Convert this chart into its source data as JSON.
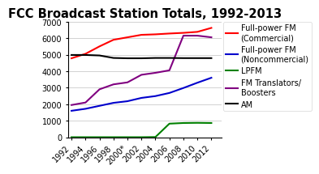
{
  "title": "FCC Broadcast Station Totals, 1992-2013",
  "x_labels": [
    "1992",
    "1994",
    "1996",
    "1998",
    "2000*",
    "2002",
    "2004",
    "2006",
    "2008",
    "2010",
    "2012"
  ],
  "x_values": [
    1992,
    1994,
    1996,
    1998,
    2000,
    2002,
    2004,
    2006,
    2008,
    2010,
    2012
  ],
  "series": [
    {
      "label": "Full-power FM\n(Commercial)",
      "color": "#ff0000",
      "values": [
        4780,
        5050,
        5500,
        5900,
        6050,
        6200,
        6230,
        6280,
        6320,
        6380,
        6620
      ]
    },
    {
      "label": "Full-power FM\n(Noncommercial)",
      "color": "#0000cc",
      "values": [
        1600,
        1720,
        1900,
        2080,
        2180,
        2380,
        2490,
        2680,
        2980,
        3300,
        3600
      ]
    },
    {
      "label": "LPFM",
      "color": "#008000",
      "values": [
        0,
        0,
        0,
        0,
        0,
        0,
        10,
        820,
        860,
        870,
        860
      ]
    },
    {
      "label": "FM Translators/\nBoosters",
      "color": "#800080",
      "values": [
        1950,
        2100,
        2900,
        3200,
        3320,
        3780,
        3900,
        4050,
        6150,
        6150,
        6050
      ]
    },
    {
      "label": "AM",
      "color": "#000000",
      "values": [
        4980,
        4980,
        4950,
        4800,
        4780,
        4780,
        4800,
        4800,
        4790,
        4790,
        4790
      ]
    }
  ],
  "ylim": [
    0,
    7000
  ],
  "yticks": [
    0,
    1000,
    2000,
    3000,
    4000,
    5000,
    6000,
    7000
  ],
  "background_color": "#ffffff",
  "title_fontsize": 10.5,
  "tick_fontsize": 7,
  "legend_fontsize": 7
}
